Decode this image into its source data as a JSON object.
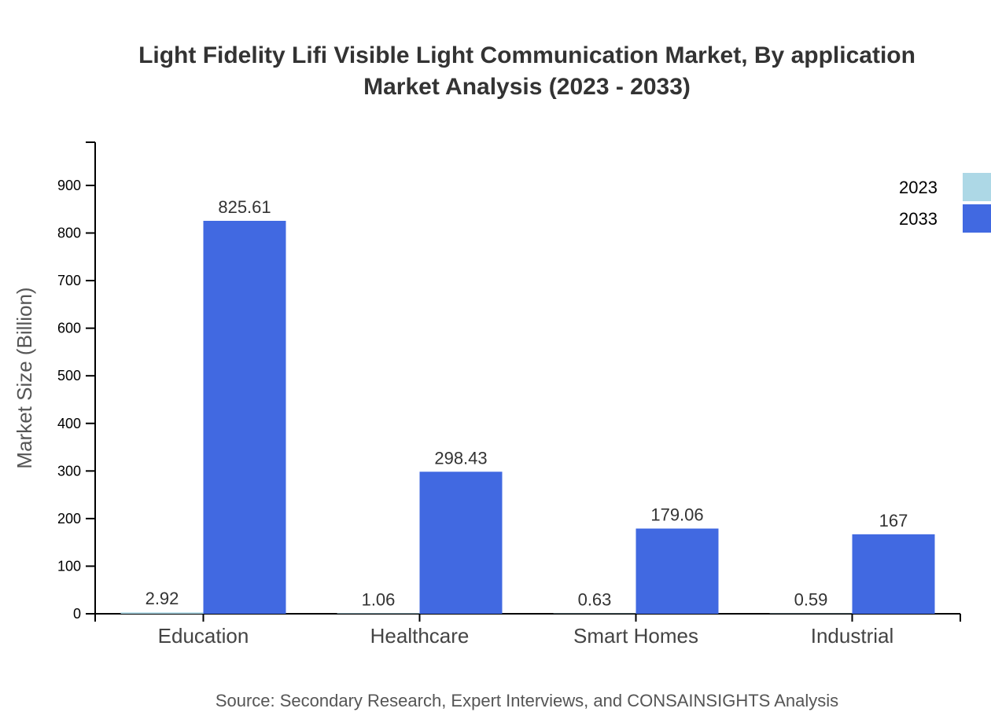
{
  "chart_data": {
    "type": "bar",
    "title_lines": [
      "Light Fidelity Lifi Visible Light Communication Market, By application",
      "Market Analysis (2023 - 2033)"
    ],
    "xlabel": "",
    "ylabel": "Market Size (Billion)",
    "categories": [
      "Education",
      "Healthcare",
      "Smart Homes",
      "Industrial"
    ],
    "series": [
      {
        "name": "2023",
        "color": "#add8e6",
        "values": [
          2.92,
          1.06,
          0.63,
          0.59
        ],
        "labels": [
          "2.92",
          "1.06",
          "0.63",
          "0.59"
        ]
      },
      {
        "name": "2033",
        "color": "#4169e1",
        "values": [
          825.61,
          298.43,
          179.06,
          167
        ],
        "labels": [
          "825.61",
          "298.43",
          "179.06",
          "167"
        ]
      }
    ],
    "ylim": [
      0,
      990.73
    ],
    "yticks": [
      0,
      100,
      200,
      300,
      400,
      500,
      600,
      700,
      800,
      900
    ],
    "grid": false,
    "legend_placement": "top-right",
    "source": "Source: Secondary Research, Expert Interviews, and CONSAINSIGHTS Analysis"
  }
}
